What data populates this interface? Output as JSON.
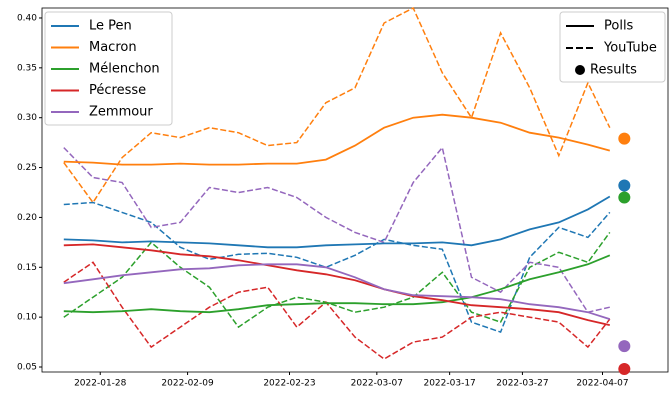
{
  "chart_data": {
    "type": "line",
    "x": [
      "2022-01-23",
      "2022-01-27",
      "2022-01-31",
      "2022-02-04",
      "2022-02-08",
      "2022-02-12",
      "2022-02-16",
      "2022-02-20",
      "2022-02-24",
      "2022-02-28",
      "2022-03-04",
      "2022-03-08",
      "2022-03-12",
      "2022-03-16",
      "2022-03-20",
      "2022-03-24",
      "2022-03-28",
      "2022-04-01",
      "2022-04-05",
      "2022-04-08"
    ],
    "result_x": "2022-04-10",
    "lines": [
      {
        "name": "Le Pen",
        "color": "#1f77b4",
        "polls": [
          0.178,
          0.177,
          0.175,
          0.176,
          0.175,
          0.174,
          0.172,
          0.17,
          0.17,
          0.172,
          0.173,
          0.174,
          0.174,
          0.175,
          0.172,
          0.178,
          0.188,
          0.195,
          0.208,
          0.221
        ],
        "youtube": [
          0.213,
          0.215,
          0.205,
          0.195,
          0.17,
          0.158,
          0.163,
          0.164,
          0.16,
          0.15,
          0.162,
          0.178,
          0.172,
          0.168,
          0.095,
          0.085,
          0.16,
          0.19,
          0.18,
          0.205
        ],
        "result": 0.232
      },
      {
        "name": "Macron",
        "color": "#ff7f0e",
        "polls": [
          0.256,
          0.255,
          0.253,
          0.253,
          0.254,
          0.253,
          0.253,
          0.254,
          0.254,
          0.258,
          0.272,
          0.29,
          0.3,
          0.303,
          0.3,
          0.295,
          0.285,
          0.28,
          0.273,
          0.267
        ],
        "youtube": [
          0.255,
          0.215,
          0.26,
          0.285,
          0.28,
          0.29,
          0.285,
          0.272,
          0.275,
          0.315,
          0.33,
          0.395,
          0.41,
          0.345,
          0.3,
          0.385,
          0.33,
          0.262,
          0.335,
          0.29
        ],
        "result": 0.279
      },
      {
        "name": "Mélenchon",
        "color": "#2ca02c",
        "polls": [
          0.106,
          0.105,
          0.106,
          0.108,
          0.106,
          0.105,
          0.108,
          0.112,
          0.113,
          0.114,
          0.114,
          0.113,
          0.113,
          0.115,
          0.12,
          0.128,
          0.138,
          0.145,
          0.153,
          0.162
        ],
        "youtube": [
          0.1,
          0.12,
          0.14,
          0.175,
          0.15,
          0.13,
          0.09,
          0.11,
          0.12,
          0.115,
          0.105,
          0.11,
          0.12,
          0.145,
          0.105,
          0.095,
          0.15,
          0.165,
          0.155,
          0.185
        ],
        "result": 0.22
      },
      {
        "name": "Pécresse",
        "color": "#d62728",
        "polls": [
          0.172,
          0.173,
          0.17,
          0.167,
          0.163,
          0.161,
          0.157,
          0.152,
          0.147,
          0.143,
          0.137,
          0.128,
          0.121,
          0.117,
          0.112,
          0.11,
          0.108,
          0.105,
          0.097,
          0.092
        ],
        "youtube": [
          0.135,
          0.155,
          0.11,
          0.07,
          0.09,
          0.11,
          0.125,
          0.13,
          0.09,
          0.115,
          0.08,
          0.058,
          0.075,
          0.08,
          0.1,
          0.105,
          0.1,
          0.095,
          0.07,
          0.098
        ],
        "result": 0.048
      },
      {
        "name": "Zemmour",
        "color": "#9467bd",
        "polls": [
          0.134,
          0.138,
          0.142,
          0.145,
          0.148,
          0.149,
          0.152,
          0.153,
          0.153,
          0.15,
          0.14,
          0.128,
          0.122,
          0.121,
          0.12,
          0.118,
          0.113,
          0.11,
          0.105,
          0.098
        ],
        "youtube": [
          0.27,
          0.24,
          0.235,
          0.19,
          0.195,
          0.23,
          0.225,
          0.23,
          0.22,
          0.2,
          0.185,
          0.175,
          0.235,
          0.27,
          0.14,
          0.125,
          0.155,
          0.15,
          0.105,
          0.11
        ],
        "result": 0.071
      }
    ],
    "style_legend": [
      "Polls",
      "YouTube",
      "Results"
    ],
    "xlim": [
      "2022-01-20",
      "2022-04-16"
    ],
    "xticks": [
      "2022-01-28",
      "2022-02-09",
      "2022-02-23",
      "2022-03-07",
      "2022-03-17",
      "2022-03-27",
      "2022-04-07"
    ],
    "ylim": [
      0.045,
      0.41
    ],
    "yticks": [
      0.05,
      {
        "value": 0.1,
        "label": "0.10"
      },
      0.15,
      {
        "value": 0.2,
        "label": "0.20"
      },
      0.25,
      {
        "value": 0.3,
        "label": "0.30"
      },
      0.35,
      {
        "value": 0.4,
        "label": "0.40"
      }
    ]
  }
}
